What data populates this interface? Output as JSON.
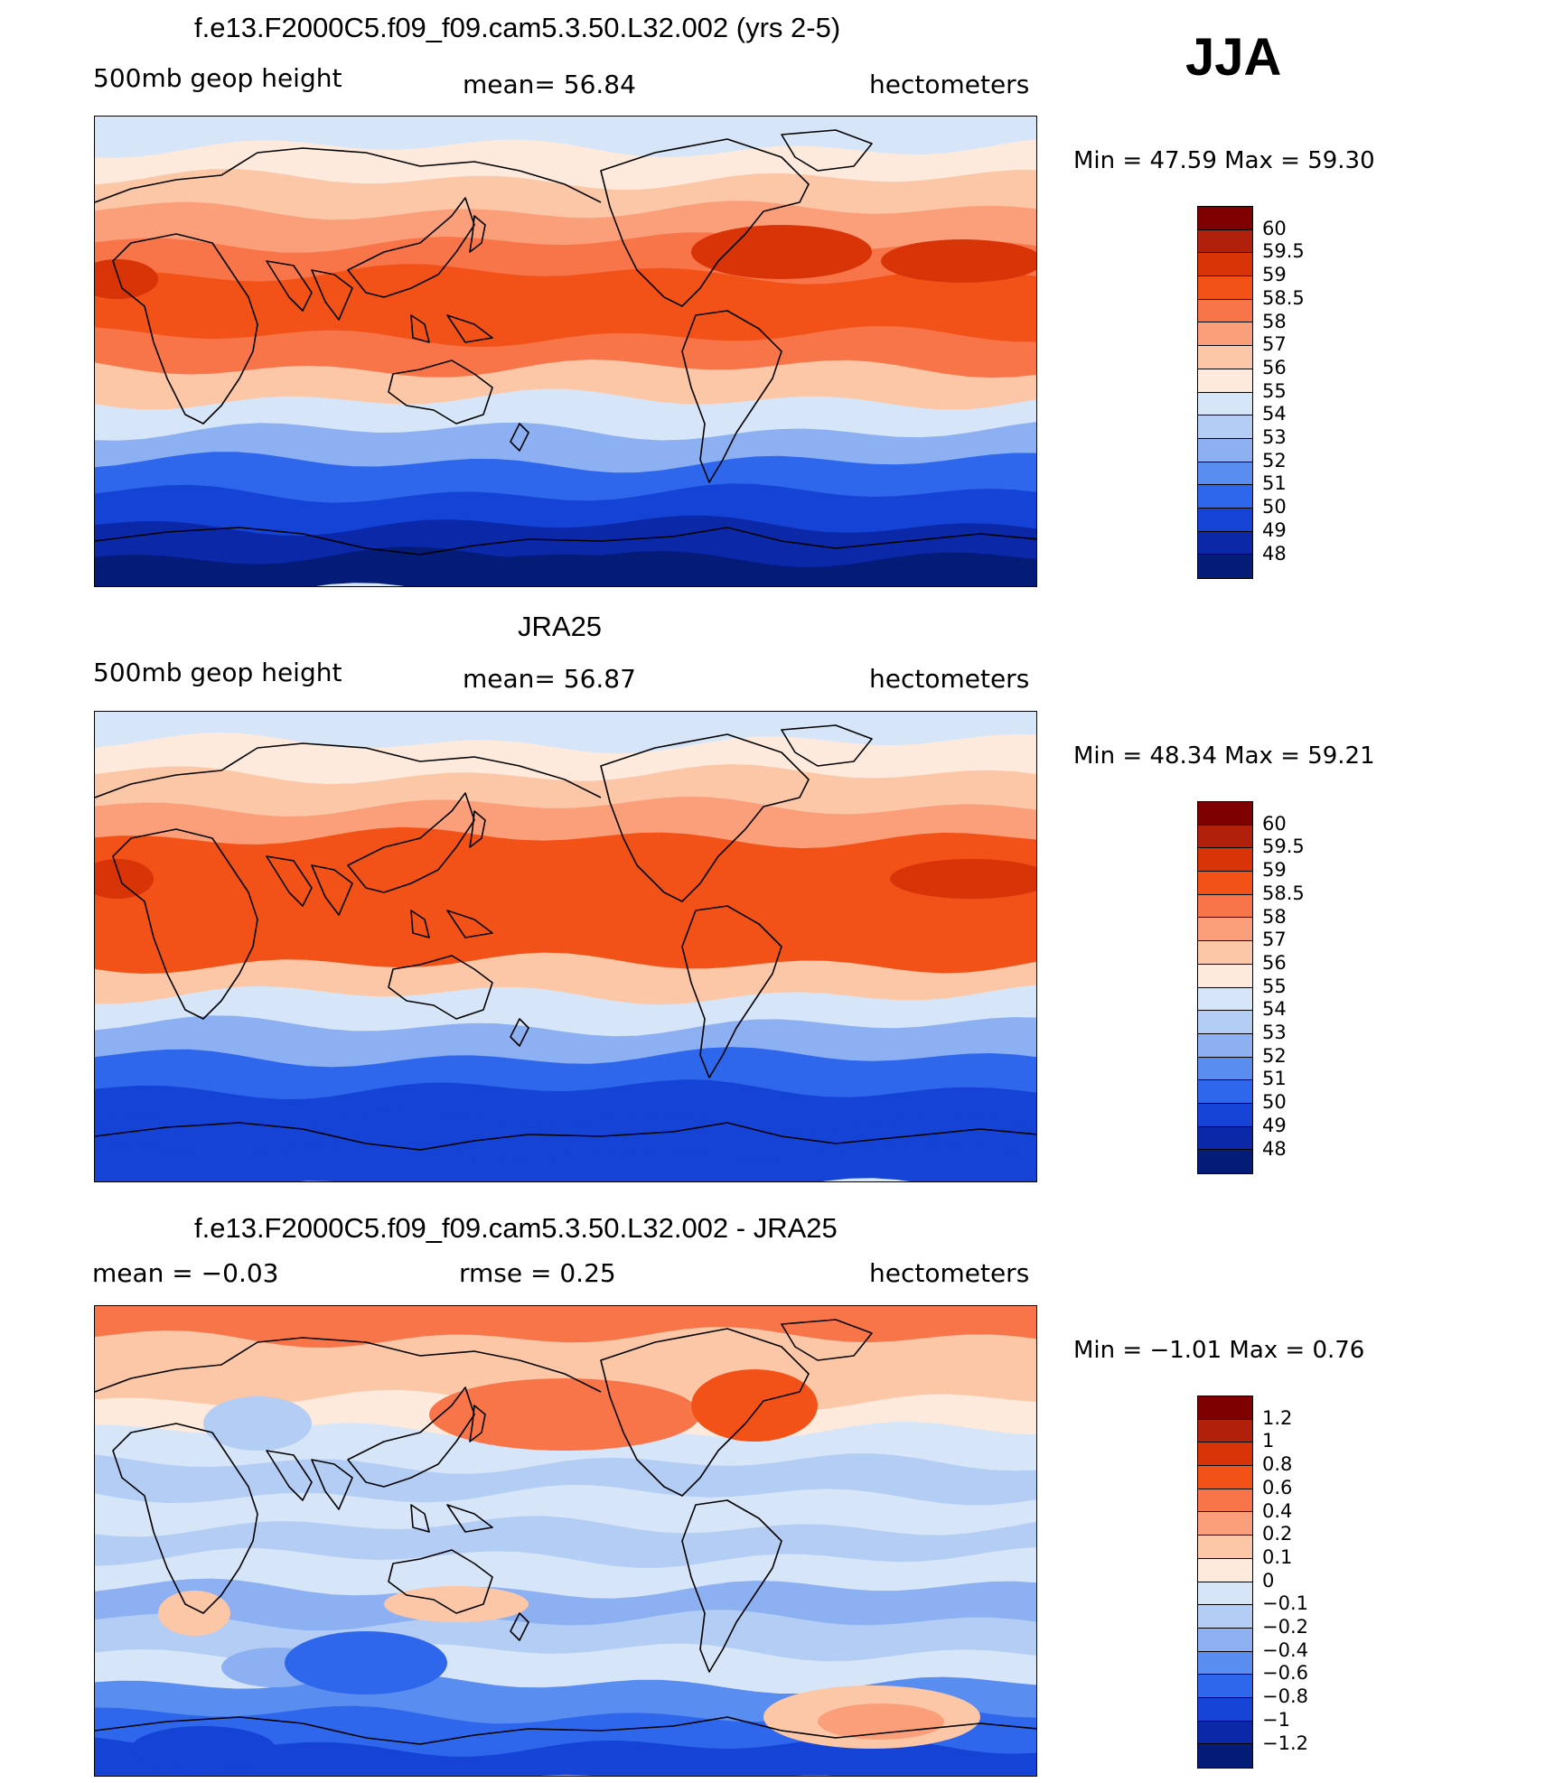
{
  "season": "JJA",
  "panels": [
    {
      "id": "model",
      "title": "f.e13.F2000C5.f09_f09.cam5.3.50.L32.002 (yrs 2-5)",
      "left_label": "500mb geop height",
      "center_label": "mean=  56.84",
      "right_label": "hectometers",
      "minmax": "Min =  47.59 Max =  59.30"
    },
    {
      "id": "obs",
      "title": "JRA25",
      "left_label": "500mb geop height",
      "center_label": "mean=  56.87",
      "right_label": "hectometers",
      "minmax": "Min =  48.34 Max =  59.21"
    },
    {
      "id": "diff",
      "title": "f.e13.F2000C5.f09_f09.cam5.3.50.L32.002 - JRA25",
      "left_label": "mean =  −0.03",
      "center_label": "rmse =   0.25",
      "right_label": "hectometers",
      "minmax": "Min =  −1.01 Max =   0.76"
    }
  ],
  "colorbars": {
    "height": {
      "labels": [
        "60",
        "59.5",
        "59",
        "58.5",
        "58",
        "57",
        "56",
        "55",
        "54",
        "53",
        "52",
        "51",
        "50",
        "49",
        "48"
      ],
      "colors": [
        "#7f0000",
        "#b0200a",
        "#d83408",
        "#f25218",
        "#f8754a",
        "#fb9f7a",
        "#fcc7a7",
        "#feeadc",
        "#d6e6f8",
        "#b4cdf4",
        "#8cb0f2",
        "#5a8df0",
        "#2f67ec",
        "#1443d6",
        "#0b28a8",
        "#041b78"
      ]
    },
    "diff": {
      "labels": [
        "1.2",
        "1",
        "0.8",
        "0.6",
        "0.4",
        "0.2",
        "0.1",
        "0",
        "−0.1",
        "−0.2",
        "−0.4",
        "−0.6",
        "−0.8",
        "−1",
        "−1.2"
      ],
      "colors": [
        "#7f0000",
        "#b0200a",
        "#d83408",
        "#f25218",
        "#f8754a",
        "#fb9f7a",
        "#fcc7a7",
        "#feeadc",
        "#d6e6f8",
        "#b4cdf4",
        "#8cb0f2",
        "#5a8df0",
        "#2f67ec",
        "#1443d6",
        "#0b28a8",
        "#041b78"
      ]
    }
  },
  "map_fields": {
    "model_bands": [
      "#d6e6f8",
      "#feeadc",
      "#fcc7a7",
      "#fb9f7a",
      "#f8754a",
      "#f25218",
      "#f25218",
      "#f8754a",
      "#fcc7a7",
      "#d6e6f8",
      "#8cb0f2",
      "#2f67ec",
      "#1443d6",
      "#0b28a8",
      "#041b78"
    ],
    "obs_bands": [
      "#d6e6f8",
      "#feeadc",
      "#fcc7a7",
      "#fb9f7a",
      "#f25218",
      "#f25218",
      "#f25218",
      "#f25218",
      "#fcc7a7",
      "#d6e6f8",
      "#8cb0f2",
      "#2f67ec",
      "#1443d6",
      "#1443d6",
      "#1443d6"
    ],
    "diff_bands": [
      "#f8754a",
      "#fcc7a7",
      "#fcc7a7",
      "#feeadc",
      "#d6e6f8",
      "#b4cdf4",
      "#d6e6f8",
      "#b4cdf4",
      "#d6e6f8",
      "#8cb0f2",
      "#b4cdf4",
      "#d6e6f8",
      "#5a8df0",
      "#2f67ec",
      "#1443d6"
    ]
  }
}
